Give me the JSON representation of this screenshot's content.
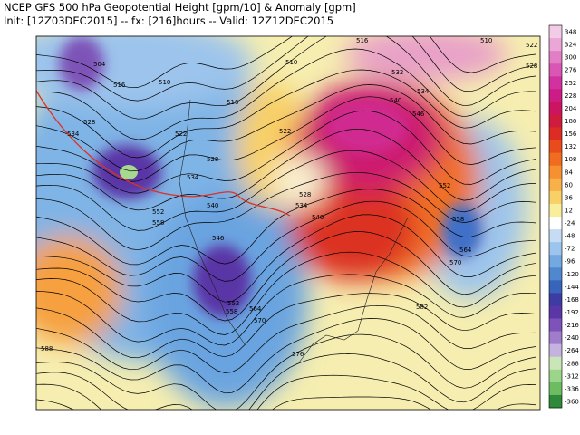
{
  "header": {
    "line1": "NCEP GFS 500 hPa Geopotential Height [gpm/10] & Anomaly [gpm]",
    "line2": "Init: [12Z03DEC2015] -- fx: [216]hours -- Valid: 12Z12DEC2015"
  },
  "colorbar": {
    "labels": [
      "348",
      "324",
      "300",
      "276",
      "252",
      "228",
      "204",
      "180",
      "156",
      "132",
      "108",
      "84",
      "60",
      "36",
      "12",
      "-24",
      "-48",
      "-72",
      "-96",
      "-120",
      "-144",
      "-168",
      "-192",
      "-216",
      "-240",
      "-264",
      "-288",
      "-312",
      "-336",
      "-360"
    ],
    "colors": [
      "#f2cbe6",
      "#eaa6d6",
      "#e27ec6",
      "#da56b4",
      "#d232a0",
      "#cc1c86",
      "#cc1462",
      "#d01c3c",
      "#dc2c24",
      "#e84c1c",
      "#f06c20",
      "#f69030",
      "#f8b048",
      "#f8d068",
      "#f8ee9c",
      "#ffffff",
      "#c6dcf4",
      "#9cc4ec",
      "#74a8e0",
      "#5088d0",
      "#3864bc",
      "#3c3ca4",
      "#5a36a6",
      "#7e52b8",
      "#a07cca",
      "#c6b2de",
      "#c8e6b8",
      "#9cd48a",
      "#6ebc62",
      "#2e8a3a"
    ]
  },
  "map": {
    "contour_labels": [
      "504",
      "516",
      "510",
      "516",
      "528",
      "534",
      "522",
      "510",
      "516",
      "510",
      "522",
      "528",
      "532",
      "534",
      "540",
      "546",
      "528",
      "534",
      "540",
      "552",
      "558",
      "546",
      "528",
      "534",
      "540",
      "552",
      "558",
      "564",
      "570",
      "582",
      "552",
      "558",
      "564",
      "570",
      "576",
      "588",
      "522"
    ]
  }
}
